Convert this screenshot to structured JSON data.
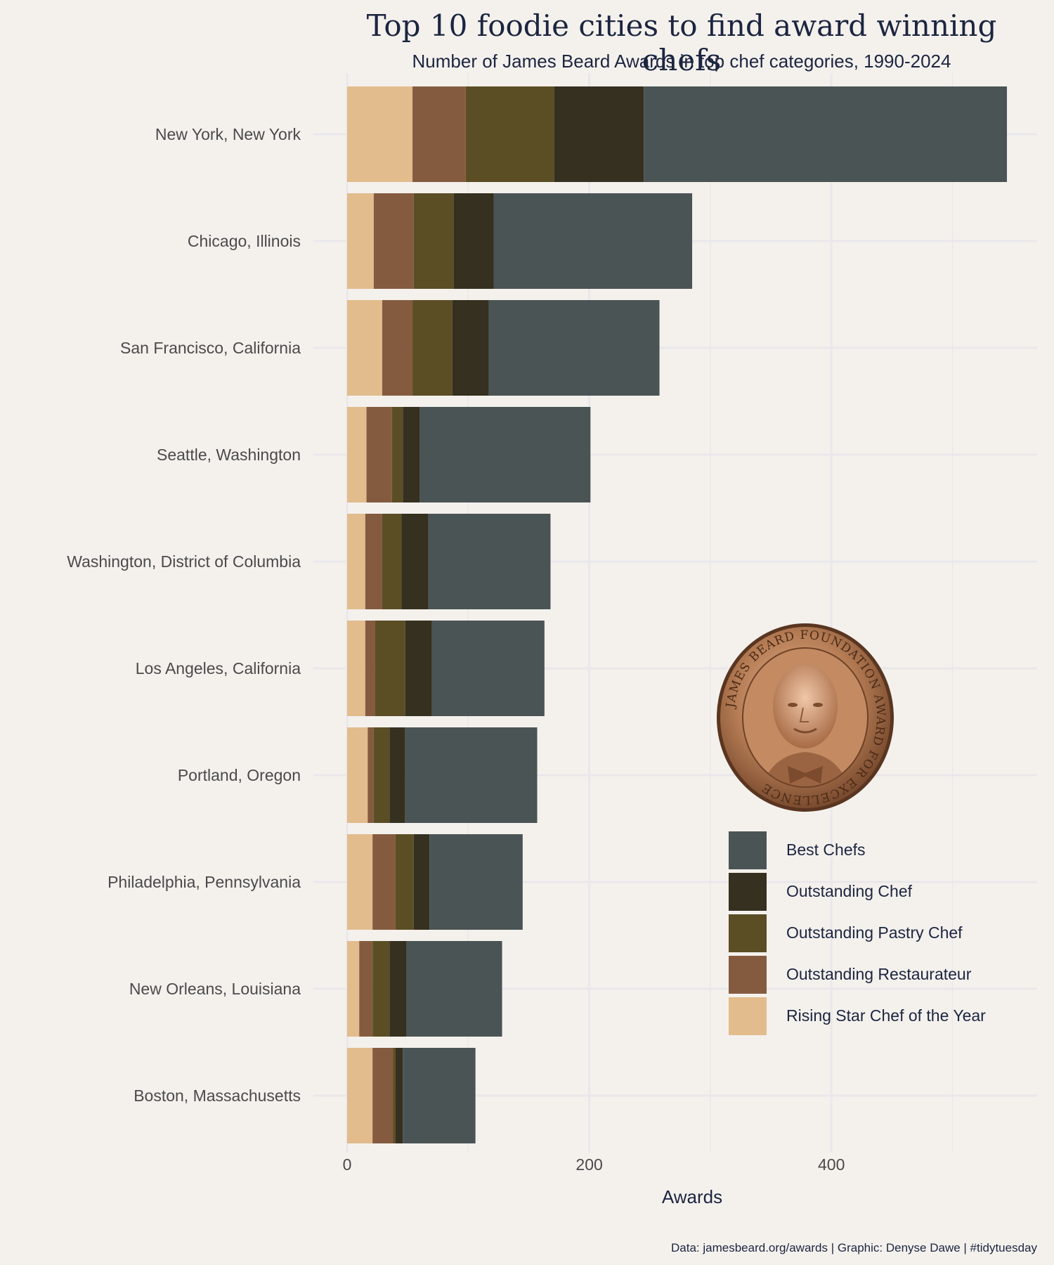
{
  "header": {
    "title": "Top 10 foodie cities to find award winning chefs",
    "subtitle": "Number of James Beard Awards in top chef categories, 1990-2024"
  },
  "caption": "Data: jamesbeard.org/awards | Graphic: Denyse Dawe | #tidytuesday",
  "chart_data": {
    "type": "bar",
    "orientation": "horizontal",
    "stacked": true,
    "title": "Top 10 foodie cities to find award winning chefs",
    "subtitle": "Number of James Beard Awards in top chef categories, 1990-2024",
    "xlabel": "Awards",
    "ylabel": "",
    "xlim": [
      0,
      570
    ],
    "x_ticks": [
      0,
      200,
      400
    ],
    "grid": true,
    "legend_position": "bottom-right",
    "categories": [
      "New York, New York",
      "Chicago, Illinois",
      "San Francisco, California",
      "Seattle, Washington",
      "Washington, District of Columbia",
      "Los Angeles, California",
      "Portland, Oregon",
      "Philadelphia, Pennsylvania",
      "New Orleans, Louisiana",
      "Boston, Massachusetts"
    ],
    "series": [
      {
        "name": "Rising Star Chef of the Year",
        "color": "#e2bc8d",
        "values": [
          54,
          22,
          29,
          16,
          15,
          15,
          17,
          21,
          10,
          21
        ]
      },
      {
        "name": "Outstanding Restaurateur",
        "color": "#855b40",
        "values": [
          44,
          33,
          25,
          21,
          14,
          8,
          5,
          19,
          11,
          17
        ]
      },
      {
        "name": "Outstanding Pastry Chef",
        "color": "#5b4e25",
        "values": [
          73,
          33,
          33,
          9,
          16,
          25,
          13,
          15,
          14,
          2
        ]
      },
      {
        "name": "Outstanding Chef",
        "color": "#35301f",
        "values": [
          74,
          33,
          30,
          14,
          22,
          22,
          13,
          13,
          14,
          6
        ]
      },
      {
        "name": "Best Chefs",
        "color": "#4b5455",
        "values": [
          300,
          164,
          141,
          141,
          101,
          93,
          109,
          77,
          79,
          60
        ]
      }
    ],
    "legend_order": [
      "Best Chefs",
      "Outstanding Chef",
      "Outstanding Pastry Chef",
      "Outstanding Restaurateur",
      "Rising Star Chef of the Year"
    ]
  },
  "medal": {
    "inscription": "JAMES BEARD FOUNDATION AWARD FOR EXCELLENCE"
  },
  "colors": {
    "background": "#f4f1ed",
    "grid": "#e9e7ea",
    "title": "#1c2540",
    "axis_text": "#4a4a4a",
    "medal_bronze": "#b67d55"
  }
}
